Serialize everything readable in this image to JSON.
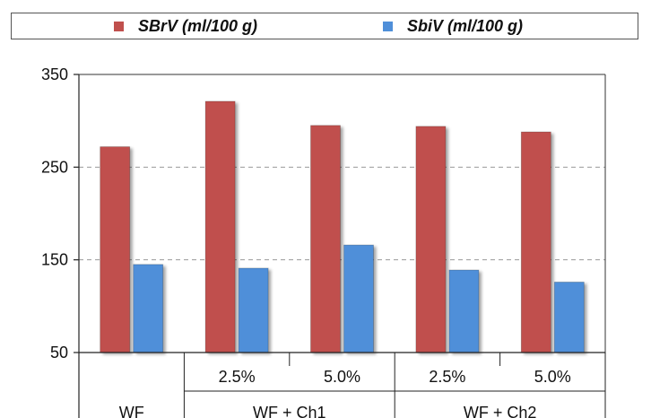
{
  "chart_data": {
    "type": "bar",
    "categories": [
      "WF",
      "WF + Ch1 2.5%",
      "WF + Ch1 5.0%",
      "WF + Ch2 2.5%",
      "WF + Ch2 5.0%"
    ],
    "group_labels": [
      "WF",
      "WF + Ch1",
      "WF + Ch2"
    ],
    "sub_labels": [
      "2.5%",
      "5.0%",
      "2.5%",
      "5.0%"
    ],
    "series": [
      {
        "name": "SBrV (ml/100 g)",
        "color": "#c0504d",
        "values": [
          272,
          321,
          295,
          294,
          288
        ]
      },
      {
        "name": "SbiV (ml/100 g)",
        "color": "#4f8fd9",
        "values": [
          145,
          141,
          166,
          139,
          126
        ]
      }
    ],
    "y_ticks": [
      50,
      150,
      250,
      350
    ],
    "ylim": [
      50,
      350
    ],
    "grid": "dashed horizontal",
    "legend_position": "top",
    "xlabel": "",
    "ylabel": "",
    "title": ""
  }
}
